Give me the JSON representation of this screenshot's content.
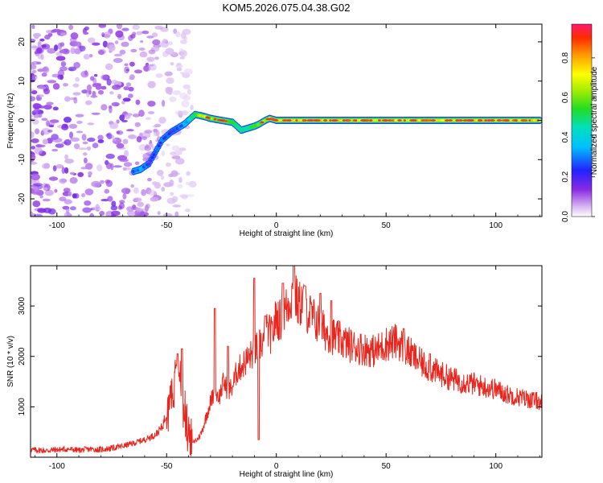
{
  "chart_data": [
    {
      "type": "heatmap",
      "title": "KOM5.2026.075.04.38.G02",
      "xlabel": "Height of straight line (km)",
      "ylabel": "Frequency (Hz)",
      "xlim": [
        -112,
        121
      ],
      "ylim": [
        -24.5,
        24.5
      ],
      "xticks": [
        -100,
        -50,
        0,
        50,
        100
      ],
      "xtick_labels": [
        "-100",
        "-50",
        "0",
        "50",
        "100"
      ],
      "yticks": [
        -20,
        -10,
        0,
        10,
        20
      ],
      "ytick_labels": [
        "-20",
        "-10",
        "0",
        "10",
        "20"
      ],
      "colorbar": {
        "label": "Normalized spectral amplitude",
        "range": [
          0,
          0.97
        ],
        "ticks": [
          0.0,
          0.2,
          0.4,
          0.6,
          0.8
        ],
        "tick_labels": [
          "0.0",
          "0.2",
          "0.4",
          "0.6",
          "0.8"
        ]
      },
      "ridge": {
        "x": [
          -65,
          -62,
          -58,
          -55,
          -52,
          -48,
          -45,
          -42,
          -40,
          -37,
          -33,
          -30,
          -25,
          -20,
          -16,
          -13,
          -10,
          -8,
          -5,
          -3,
          0,
          10,
          30,
          60,
          90,
          120
        ],
        "y": [
          -13,
          -12.5,
          -11,
          -8,
          -5,
          -3,
          -2,
          -1,
          0,
          1.5,
          1,
          0.5,
          0,
          -0.5,
          -2.5,
          -2,
          -1.5,
          -1,
          0,
          0.5,
          0,
          0,
          0,
          0,
          0,
          0
        ],
        "amplitude": [
          0.35,
          0.4,
          0.3,
          0.3,
          0.35,
          0.3,
          0.3,
          0.45,
          0.5,
          0.75,
          0.9,
          0.8,
          0.85,
          0.75,
          0.6,
          0.65,
          0.7,
          0.8,
          0.85,
          0.9,
          0.95,
          0.95,
          0.95,
          0.95,
          0.95,
          0.95
        ]
      },
      "noise_region_x": [
        -112,
        -38
      ]
    },
    {
      "type": "line",
      "xlabel": "Height of straight line (km)",
      "ylabel": "SNR (10 * v/v)",
      "xlim": [
        -112,
        121
      ],
      "ylim": [
        0,
        3800
      ],
      "xticks": [
        -100,
        -50,
        0,
        50,
        100
      ],
      "xtick_labels": [
        "-100",
        "-50",
        "0",
        "50",
        "100"
      ],
      "yticks": [
        1000,
        2000,
        3000
      ],
      "ytick_labels": [
        "1000",
        "2000",
        "3000"
      ],
      "series": [
        {
          "name": "SNR",
          "color": "#e8261d",
          "x": [
            -112,
            -105,
            -100,
            -95,
            -90,
            -85,
            -80,
            -75,
            -70,
            -65,
            -60,
            -55,
            -52,
            -50,
            -48,
            -46,
            -44,
            -42,
            -40,
            -38,
            -36,
            -34,
            -32,
            -30,
            -28,
            -26,
            -24,
            -22,
            -20,
            -18,
            -16,
            -14,
            -12,
            -10,
            -8,
            -6,
            -4,
            -2,
            0,
            2,
            4,
            6,
            8,
            10,
            12,
            14,
            16,
            18,
            20,
            22,
            24,
            26,
            28,
            30,
            35,
            40,
            45,
            50,
            55,
            60,
            65,
            70,
            75,
            80,
            85,
            90,
            95,
            100,
            105,
            110,
            115,
            121
          ],
          "y": [
            150,
            130,
            150,
            160,
            140,
            160,
            150,
            180,
            220,
            280,
            350,
            450,
            600,
            900,
            1300,
            1500,
            1700,
            900,
            500,
            300,
            350,
            500,
            800,
            1100,
            1300,
            1200,
            1500,
            1300,
            1400,
            1700,
            1800,
            1900,
            2000,
            2100,
            2200,
            2300,
            2500,
            2400,
            2800,
            2700,
            2900,
            3100,
            3300,
            3000,
            3100,
            2900,
            2800,
            2700,
            2600,
            2500,
            2450,
            2400,
            2350,
            2300,
            2200,
            2150,
            2100,
            2250,
            2300,
            2100,
            1900,
            1750,
            1650,
            1550,
            1500,
            1450,
            1400,
            1350,
            1250,
            1200,
            1150,
            1100
          ],
          "spikes": [
            {
              "x": -45,
              "y": 2050
            },
            {
              "x": -43,
              "y": 2150
            },
            {
              "x": -38,
              "y": 300
            },
            {
              "x": -28,
              "y": 2950
            },
            {
              "x": -22,
              "y": 2200
            },
            {
              "x": -10,
              "y": 3550
            },
            {
              "x": -8,
              "y": 350
            },
            {
              "x": -5,
              "y": 2800
            },
            {
              "x": 3,
              "y": 3450
            },
            {
              "x": 8,
              "y": 3800
            },
            {
              "x": 13,
              "y": 3400
            },
            {
              "x": 20,
              "y": 3250
            },
            {
              "x": 25,
              "y": 3100
            },
            {
              "x": 58,
              "y": 2550
            },
            {
              "x": 70,
              "y": 2050
            }
          ]
        }
      ]
    }
  ]
}
